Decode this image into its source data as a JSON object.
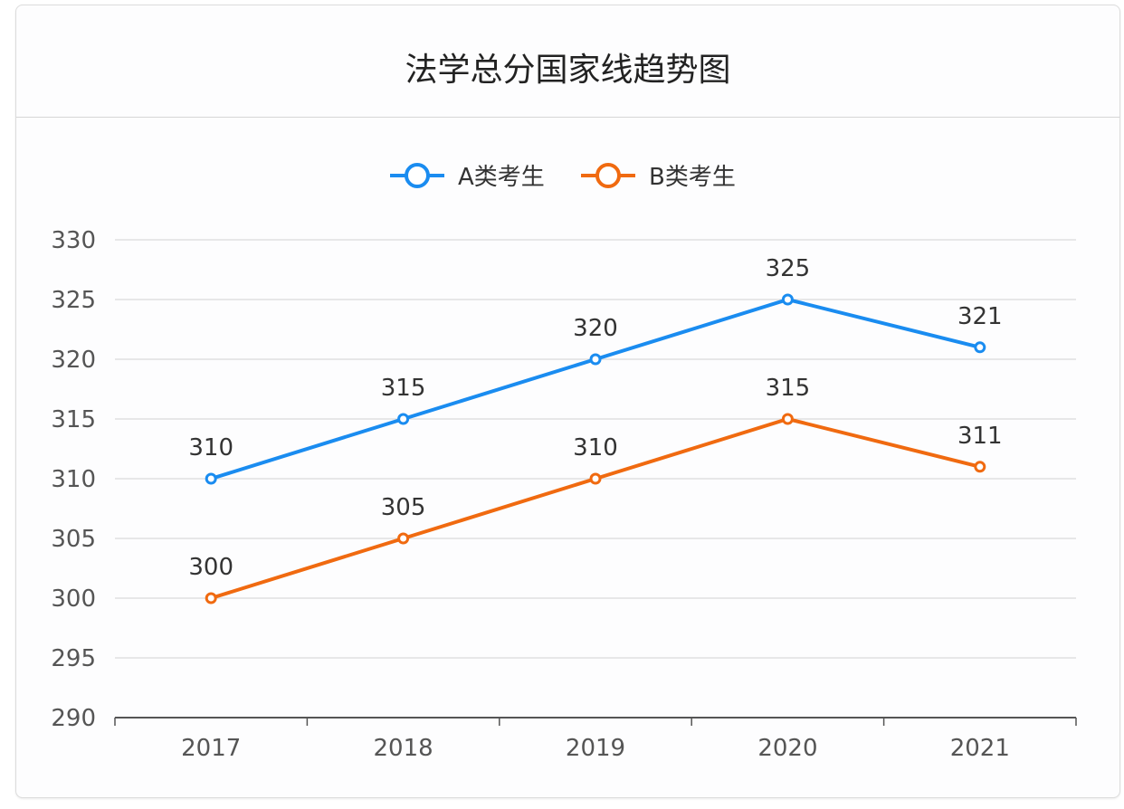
{
  "chart_data": {
    "type": "line",
    "title": "法学总分国家线趋势图",
    "categories": [
      "2017",
      "2018",
      "2019",
      "2020",
      "2021"
    ],
    "series": [
      {
        "name": "A类考生",
        "values": [
          310,
          315,
          320,
          325,
          321
        ],
        "color": "#1a8cf0"
      },
      {
        "name": "B类考生",
        "values": [
          300,
          305,
          310,
          315,
          311
        ],
        "color": "#f06a10"
      }
    ],
    "xlabel": "",
    "ylabel": "",
    "ylim": [
      290,
      330
    ],
    "yticks": [
      290,
      295,
      300,
      305,
      310,
      315,
      320,
      325,
      330
    ],
    "grid": true,
    "legend": "top-center",
    "data_labels": true
  }
}
